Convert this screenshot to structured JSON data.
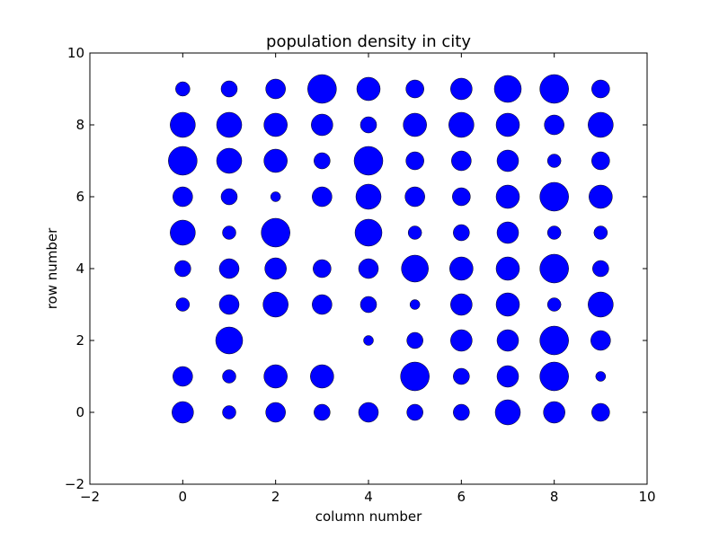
{
  "chart_data": {
    "type": "scatter",
    "title": "population density in city",
    "xlabel": "column number",
    "ylabel": "row number",
    "xlim": [
      -2,
      10
    ],
    "ylim": [
      -2,
      10
    ],
    "xticks": [
      -2,
      0,
      2,
      4,
      6,
      8,
      10
    ],
    "yticks": [
      -2,
      0,
      2,
      4,
      6,
      8,
      10
    ],
    "grid": false,
    "legend": "none",
    "marker_color": "#0000ff",
    "size_note_values_are_relative_marker_diameters": true,
    "points": [
      {
        "x": 0,
        "y": 9,
        "size": 16
      },
      {
        "x": 1,
        "y": 9,
        "size": 18
      },
      {
        "x": 2,
        "y": 9,
        "size": 22
      },
      {
        "x": 3,
        "y": 9,
        "size": 32
      },
      {
        "x": 4,
        "y": 9,
        "size": 26
      },
      {
        "x": 5,
        "y": 9,
        "size": 20
      },
      {
        "x": 6,
        "y": 9,
        "size": 24
      },
      {
        "x": 7,
        "y": 9,
        "size": 30
      },
      {
        "x": 8,
        "y": 9,
        "size": 32
      },
      {
        "x": 9,
        "y": 9,
        "size": 20
      },
      {
        "x": 0,
        "y": 8,
        "size": 28
      },
      {
        "x": 1,
        "y": 8,
        "size": 28
      },
      {
        "x": 2,
        "y": 8,
        "size": 26
      },
      {
        "x": 3,
        "y": 8,
        "size": 24
      },
      {
        "x": 4,
        "y": 8,
        "size": 18
      },
      {
        "x": 5,
        "y": 8,
        "size": 26
      },
      {
        "x": 6,
        "y": 8,
        "size": 28
      },
      {
        "x": 7,
        "y": 8,
        "size": 26
      },
      {
        "x": 8,
        "y": 8,
        "size": 22
      },
      {
        "x": 9,
        "y": 8,
        "size": 28
      },
      {
        "x": 0,
        "y": 7,
        "size": 32
      },
      {
        "x": 1,
        "y": 7,
        "size": 28
      },
      {
        "x": 2,
        "y": 7,
        "size": 26
      },
      {
        "x": 3,
        "y": 7,
        "size": 18
      },
      {
        "x": 4,
        "y": 7,
        "size": 32
      },
      {
        "x": 5,
        "y": 7,
        "size": 20
      },
      {
        "x": 6,
        "y": 7,
        "size": 22
      },
      {
        "x": 7,
        "y": 7,
        "size": 24
      },
      {
        "x": 8,
        "y": 7,
        "size": 15
      },
      {
        "x": 9,
        "y": 7,
        "size": 20
      },
      {
        "x": 0,
        "y": 6,
        "size": 22
      },
      {
        "x": 1,
        "y": 6,
        "size": 18
      },
      {
        "x": 2,
        "y": 6,
        "size": 11
      },
      {
        "x": 3,
        "y": 6,
        "size": 22
      },
      {
        "x": 4,
        "y": 6,
        "size": 28
      },
      {
        "x": 5,
        "y": 6,
        "size": 22
      },
      {
        "x": 6,
        "y": 6,
        "size": 20
      },
      {
        "x": 7,
        "y": 6,
        "size": 26
      },
      {
        "x": 8,
        "y": 6,
        "size": 32
      },
      {
        "x": 9,
        "y": 6,
        "size": 26
      },
      {
        "x": 0,
        "y": 5,
        "size": 28
      },
      {
        "x": 1,
        "y": 5,
        "size": 15
      },
      {
        "x": 2,
        "y": 5,
        "size": 32
      },
      {
        "x": 4,
        "y": 5,
        "size": 30
      },
      {
        "x": 5,
        "y": 5,
        "size": 15
      },
      {
        "x": 6,
        "y": 5,
        "size": 18
      },
      {
        "x": 7,
        "y": 5,
        "size": 24
      },
      {
        "x": 8,
        "y": 5,
        "size": 15
      },
      {
        "x": 9,
        "y": 5,
        "size": 15
      },
      {
        "x": 0,
        "y": 4,
        "size": 18
      },
      {
        "x": 1,
        "y": 4,
        "size": 22
      },
      {
        "x": 2,
        "y": 4,
        "size": 24
      },
      {
        "x": 3,
        "y": 4,
        "size": 20
      },
      {
        "x": 4,
        "y": 4,
        "size": 22
      },
      {
        "x": 5,
        "y": 4,
        "size": 30
      },
      {
        "x": 6,
        "y": 4,
        "size": 26
      },
      {
        "x": 7,
        "y": 4,
        "size": 26
      },
      {
        "x": 8,
        "y": 4,
        "size": 32
      },
      {
        "x": 9,
        "y": 4,
        "size": 18
      },
      {
        "x": 0,
        "y": 3,
        "size": 15
      },
      {
        "x": 1,
        "y": 3,
        "size": 22
      },
      {
        "x": 2,
        "y": 3,
        "size": 28
      },
      {
        "x": 3,
        "y": 3,
        "size": 22
      },
      {
        "x": 4,
        "y": 3,
        "size": 18
      },
      {
        "x": 5,
        "y": 3,
        "size": 11
      },
      {
        "x": 6,
        "y": 3,
        "size": 24
      },
      {
        "x": 7,
        "y": 3,
        "size": 26
      },
      {
        "x": 8,
        "y": 3,
        "size": 15
      },
      {
        "x": 9,
        "y": 3,
        "size": 28
      },
      {
        "x": 1,
        "y": 2,
        "size": 30
      },
      {
        "x": 4,
        "y": 2,
        "size": 11
      },
      {
        "x": 5,
        "y": 2,
        "size": 18
      },
      {
        "x": 6,
        "y": 2,
        "size": 24
      },
      {
        "x": 7,
        "y": 2,
        "size": 24
      },
      {
        "x": 8,
        "y": 2,
        "size": 32
      },
      {
        "x": 9,
        "y": 2,
        "size": 22
      },
      {
        "x": 0,
        "y": 1,
        "size": 22
      },
      {
        "x": 1,
        "y": 1,
        "size": 15
      },
      {
        "x": 2,
        "y": 1,
        "size": 26
      },
      {
        "x": 3,
        "y": 1,
        "size": 26
      },
      {
        "x": 5,
        "y": 1,
        "size": 32
      },
      {
        "x": 6,
        "y": 1,
        "size": 18
      },
      {
        "x": 7,
        "y": 1,
        "size": 24
      },
      {
        "x": 8,
        "y": 1,
        "size": 32
      },
      {
        "x": 9,
        "y": 1,
        "size": 11
      },
      {
        "x": 0,
        "y": 0,
        "size": 24
      },
      {
        "x": 1,
        "y": 0,
        "size": 15
      },
      {
        "x": 2,
        "y": 0,
        "size": 22
      },
      {
        "x": 3,
        "y": 0,
        "size": 18
      },
      {
        "x": 4,
        "y": 0,
        "size": 22
      },
      {
        "x": 5,
        "y": 0,
        "size": 18
      },
      {
        "x": 6,
        "y": 0,
        "size": 18
      },
      {
        "x": 7,
        "y": 0,
        "size": 28
      },
      {
        "x": 8,
        "y": 0,
        "size": 24
      },
      {
        "x": 9,
        "y": 0,
        "size": 20
      }
    ]
  }
}
